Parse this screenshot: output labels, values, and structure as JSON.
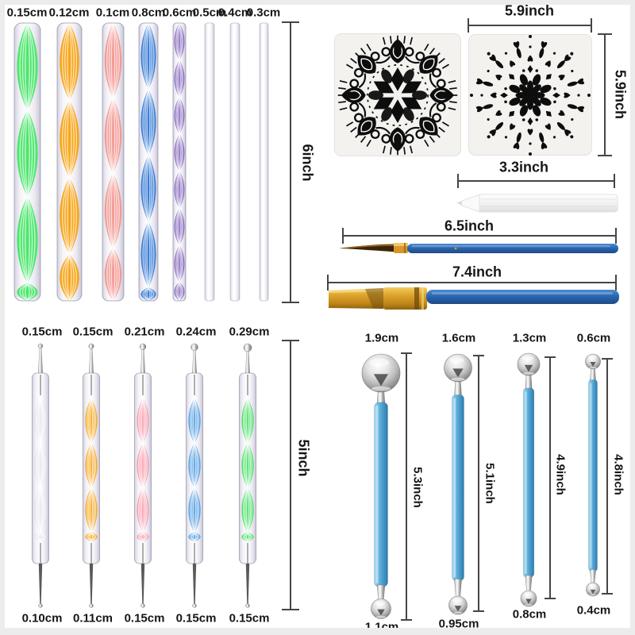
{
  "colors": {
    "text": "#161616",
    "measure_line": "#454545",
    "frame": "#ececec",
    "stencil_bg": "#f3f2ef",
    "mandala_ink": "#0d0d0d",
    "brush_handle_blue": "#2b67b2",
    "stylus_handle_blue": "#58a9d6",
    "gold": "#d9952a",
    "metal_silver": "#b9b9b9"
  },
  "acrylic_rods": {
    "length_label": "6inch",
    "items": [
      {
        "size_label": "0.15cm",
        "color": "#4ee66e",
        "style": "twist"
      },
      {
        "size_label": "0.12cm",
        "color": "#f7a61b",
        "style": "twist"
      },
      {
        "size_label": "0.1cm",
        "color": "#f29a94",
        "style": "twist"
      },
      {
        "size_label": "0.8cm",
        "color": "#3c7fd8",
        "style": "twist"
      },
      {
        "size_label": "0.6cm",
        "color": "#7551b5",
        "style": "twist"
      },
      {
        "size_label": "0.5cm",
        "color": "#e4e1eb",
        "style": "clear"
      },
      {
        "size_label": "0.4cm",
        "color": "#e4e1eb",
        "style": "clear"
      },
      {
        "size_label": "0.3cm",
        "color": "#e4e1eb",
        "style": "clear"
      }
    ]
  },
  "stencils": {
    "width_label": "5.9inch",
    "height_label": "5.9inch",
    "items": [
      {
        "name": "ornate-mandala-stencil"
      },
      {
        "name": "dotted-mandala-stencil"
      }
    ]
  },
  "white_pencil": {
    "length_label": "3.3inch"
  },
  "liner_brush": {
    "length_label": "6.5inch"
  },
  "flat_brush": {
    "length_label": "7.4inch"
  },
  "dotting_pens": {
    "length_label": "5inch",
    "items": [
      {
        "tip_top_label": "0.15cm",
        "tip_bottom_label": "0.10cm",
        "color": "#e8e5ef",
        "style": "clear"
      },
      {
        "tip_top_label": "0.15cm",
        "tip_bottom_label": "0.11cm",
        "color": "#f7a71e",
        "style": "twist"
      },
      {
        "tip_top_label": "0.21cm",
        "tip_bottom_label": "0.15cm",
        "color": "#f89cab",
        "style": "twist"
      },
      {
        "tip_top_label": "0.24cm",
        "tip_bottom_label": "0.15cm",
        "color": "#4f9de2",
        "style": "twist"
      },
      {
        "tip_top_label": "0.29cm",
        "tip_bottom_label": "0.15cm",
        "color": "#49e065",
        "style": "twist"
      }
    ]
  },
  "ball_styluses": {
    "items": [
      {
        "ball_top_label": "1.9cm",
        "ball_bottom_label": "1.1cm",
        "length_label": "5.3inch"
      },
      {
        "ball_top_label": "1.6cm",
        "ball_bottom_label": "0.95cm",
        "length_label": "5.1inch"
      },
      {
        "ball_top_label": "1.3cm",
        "ball_bottom_label": "0.8cm",
        "length_label": "4.9inch"
      },
      {
        "ball_top_label": "0.6cm",
        "ball_bottom_label": "0.4cm",
        "length_label": "4.8inch"
      }
    ]
  }
}
